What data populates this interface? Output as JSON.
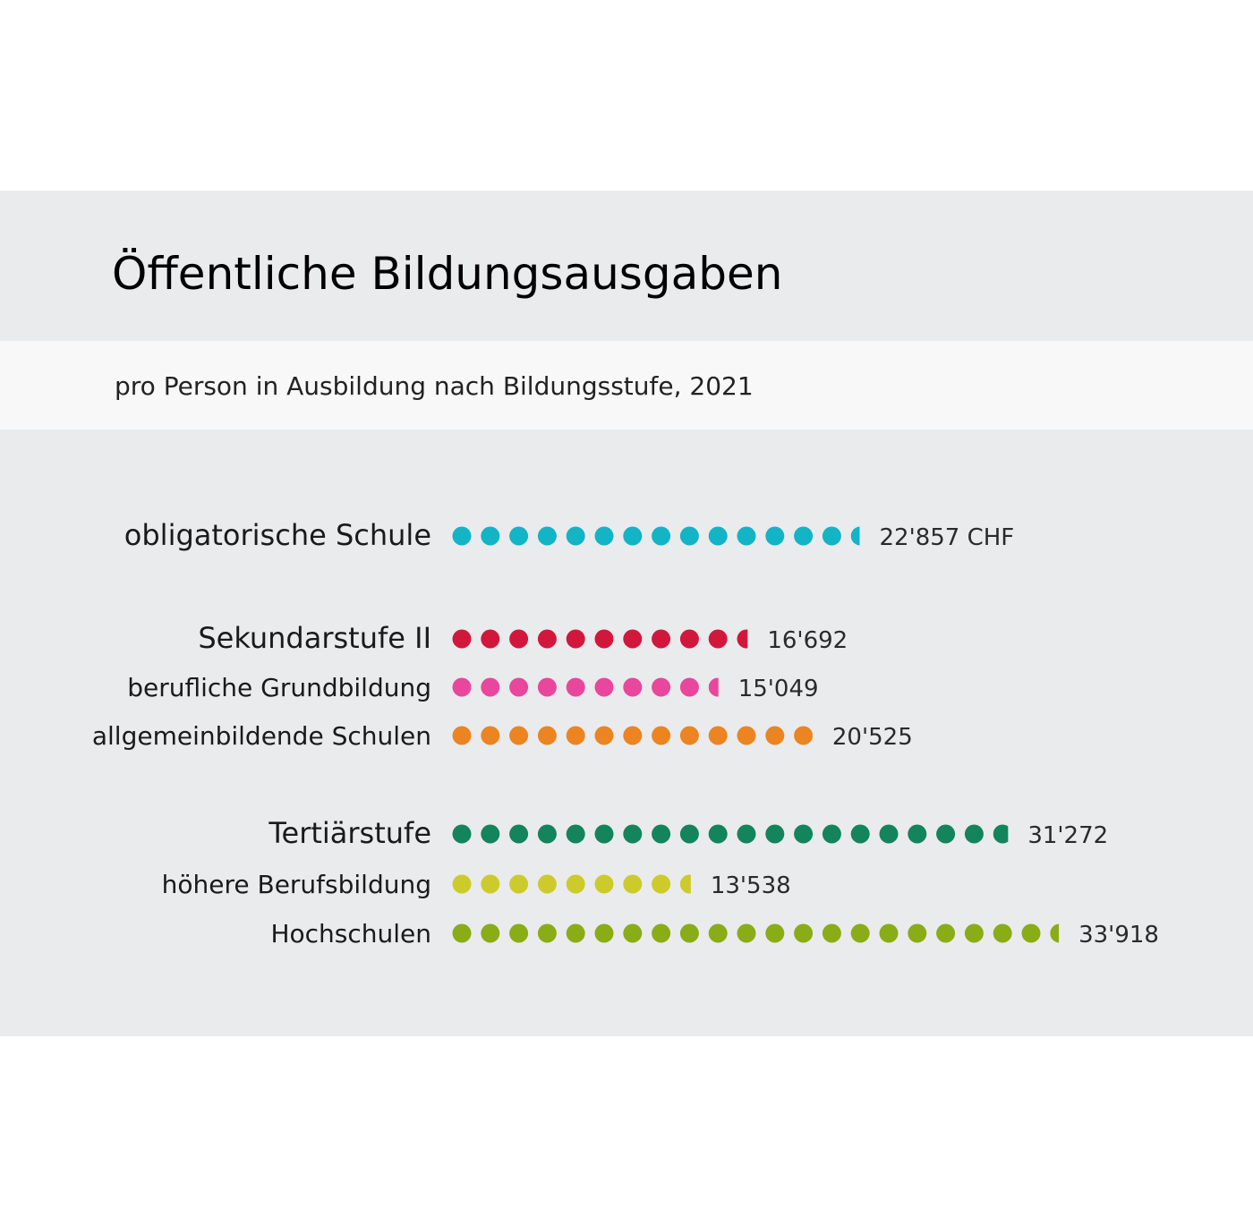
{
  "title": "Öffentliche Bildungsausgaben",
  "subtitle": "pro Person in Ausbildung nach Bildungsstufe, 2021",
  "chart_data": {
    "type": "pictogram-bar",
    "unit": "CHF",
    "unit_per_dot": 1580,
    "categories": [
      {
        "label": "obligatorische Schule",
        "value": 22857,
        "value_label": "22'857 CHF",
        "level": "main",
        "color": "#12b4c6"
      },
      {
        "label": "Sekundarstufe II",
        "value": 16692,
        "value_label": "16'692",
        "level": "main",
        "color": "#d2173c"
      },
      {
        "label": "berufliche Grundbildung",
        "value": 15049,
        "value_label": "15'049",
        "level": "sub",
        "color": "#e8479d"
      },
      {
        "label": "allgemeinbildende Schulen",
        "value": 20525,
        "value_label": "20'525",
        "level": "sub",
        "color": "#ec8421"
      },
      {
        "label": "Tertiärstufe",
        "value": 31272,
        "value_label": "31'272",
        "level": "main",
        "color": "#13845b"
      },
      {
        "label": "höhere Berufsbildung",
        "value": 13538,
        "value_label": "13'538",
        "level": "sub",
        "color": "#cccb2b"
      },
      {
        "label": "Hochschulen",
        "value": 33918,
        "value_label": "33'918",
        "level": "sub",
        "color": "#8aac16"
      }
    ]
  }
}
